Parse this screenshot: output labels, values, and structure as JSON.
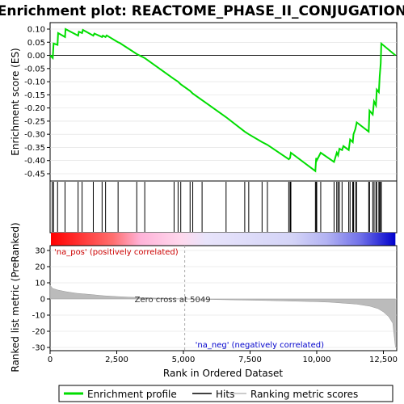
{
  "chart_data": {
    "type": "line",
    "title": "Enrichment plot: REACTOME_PHASE_II_CONJUGATION",
    "xlabel": "Rank in Ordered Dataset",
    "ylabel_top": "Enrichment score (ES)",
    "ylabel_bottom": "Ranked list metric (PreRanked)",
    "xlim": [
      0,
      13000
    ],
    "ylim_top": [
      -0.45,
      0.12
    ],
    "ylim_bottom": [
      -32,
      35
    ],
    "x_ticks": [
      0,
      2500,
      5000,
      7500,
      10000,
      12500
    ],
    "x_tick_labels": [
      "0",
      "2,500",
      "5,000",
      "7,500",
      "10,000",
      "12,500"
    ],
    "y_ticks_top": [
      0.1,
      0.05,
      0.0,
      -0.05,
      -0.1,
      -0.15,
      -0.2,
      -0.25,
      -0.3,
      -0.35,
      -0.4,
      -0.45
    ],
    "y_tick_labels_top": [
      "0.10",
      "0.05",
      "0.00",
      "-0.05",
      "-0.10",
      "-0.15",
      "-0.20",
      "-0.25",
      "-0.30",
      "-0.35",
      "-0.40",
      "-0.45"
    ],
    "y_ticks_bottom": [
      30,
      20,
      10,
      0,
      -10,
      -20,
      -30
    ],
    "y_tick_labels_bottom": [
      "30",
      "20",
      "10",
      "0",
      "-10",
      "-20",
      "-30"
    ],
    "series": [
      {
        "name": "Enrichment profile",
        "color": "#00dd00",
        "points": [
          [
            0,
            0.0
          ],
          [
            100,
            -0.01
          ],
          [
            130,
            0.045
          ],
          [
            280,
            0.04
          ],
          [
            300,
            0.085
          ],
          [
            560,
            0.07
          ],
          [
            580,
            0.1
          ],
          [
            1050,
            0.075
          ],
          [
            1080,
            0.09
          ],
          [
            1200,
            0.085
          ],
          [
            1230,
            0.097
          ],
          [
            1620,
            0.075
          ],
          [
            1660,
            0.083
          ],
          [
            1950,
            0.07
          ],
          [
            1980,
            0.075
          ],
          [
            2080,
            0.07
          ],
          [
            2120,
            0.076
          ],
          [
            2550,
            0.05
          ],
          [
            2600,
            0.048
          ],
          [
            3250,
            0.005
          ],
          [
            3550,
            -0.01
          ],
          [
            4650,
            -0.09
          ],
          [
            4800,
            -0.1
          ],
          [
            4900,
            -0.11
          ],
          [
            5250,
            -0.135
          ],
          [
            5350,
            -0.145
          ],
          [
            5700,
            -0.17
          ],
          [
            6600,
            -0.235
          ],
          [
            7300,
            -0.29
          ],
          [
            7450,
            -0.3
          ],
          [
            7950,
            -0.33
          ],
          [
            8150,
            -0.34
          ],
          [
            8950,
            -0.395
          ],
          [
            9000,
            -0.39
          ],
          [
            9030,
            -0.37
          ],
          [
            9950,
            -0.44
          ],
          [
            9980,
            -0.39
          ],
          [
            10000,
            -0.4
          ],
          [
            10150,
            -0.37
          ],
          [
            10650,
            -0.405
          ],
          [
            10750,
            -0.37
          ],
          [
            10800,
            -0.38
          ],
          [
            10850,
            -0.355
          ],
          [
            10950,
            -0.36
          ],
          [
            11000,
            -0.345
          ],
          [
            11200,
            -0.36
          ],
          [
            11250,
            -0.32
          ],
          [
            11350,
            -0.33
          ],
          [
            11380,
            -0.3
          ],
          [
            11450,
            -0.28
          ],
          [
            11500,
            -0.255
          ],
          [
            11950,
            -0.29
          ],
          [
            11980,
            -0.21
          ],
          [
            12100,
            -0.225
          ],
          [
            12150,
            -0.175
          ],
          [
            12220,
            -0.19
          ],
          [
            12250,
            -0.13
          ],
          [
            12330,
            -0.14
          ],
          [
            12360,
            -0.08
          ],
          [
            12400,
            -0.03
          ],
          [
            12420,
            0.045
          ],
          [
            12950,
            0.0
          ]
        ]
      }
    ],
    "hits": [
      80,
      130,
      280,
      560,
      1050,
      1200,
      1620,
      1950,
      2080,
      2550,
      3250,
      3550,
      4650,
      4800,
      4900,
      5250,
      5350,
      5700,
      6600,
      7300,
      7450,
      7950,
      8150,
      8950,
      9000,
      9030,
      9950,
      9980,
      10000,
      10150,
      10650,
      10750,
      10800,
      10850,
      10950,
      11200,
      11250,
      11350,
      11380,
      11450,
      11500,
      11950,
      11980,
      12100,
      12150,
      12220,
      12250,
      12330,
      12360,
      12400,
      12420
    ],
    "ranked_metric": [
      [
        0,
        8.5
      ],
      [
        100,
        6.5
      ],
      [
        300,
        5.5
      ],
      [
        600,
        4.5
      ],
      [
        1000,
        3.5
      ],
      [
        1500,
        2.8
      ],
      [
        2000,
        2.0
      ],
      [
        2500,
        1.5
      ],
      [
        3000,
        1.1
      ],
      [
        3500,
        0.8
      ],
      [
        4000,
        0.5
      ],
      [
        4500,
        0.3
      ],
      [
        5049,
        0.0
      ],
      [
        6000,
        -0.3
      ],
      [
        7000,
        -0.6
      ],
      [
        8000,
        -0.9
      ],
      [
        9000,
        -1.3
      ],
      [
        10000,
        -1.7
      ],
      [
        10500,
        -2.0
      ],
      [
        11000,
        -2.6
      ],
      [
        11500,
        -3.2
      ],
      [
        12000,
        -4.5
      ],
      [
        12300,
        -6.0
      ],
      [
        12500,
        -8.0
      ],
      [
        12700,
        -11.0
      ],
      [
        12850,
        -15.0
      ],
      [
        12950,
        -30.0
      ]
    ],
    "annotations": {
      "pos": "'na_pos' (positively correlated)",
      "neg": "'na_neg' (negatively correlated)",
      "zero_cross": "Zero cross at 5049",
      "zero_cross_x": 5049
    },
    "legend": [
      {
        "label": "Enrichment profile",
        "color": "#00dd00",
        "kind": "thick-line"
      },
      {
        "label": "Hits",
        "color": "#000000",
        "kind": "line"
      },
      {
        "label": "Ranking metric scores",
        "color": "#bbbbbb",
        "kind": "line"
      }
    ],
    "colors": {
      "pos_text": "#cc0000",
      "neg_text": "#0000cc",
      "metric_fill": "#bbbbbb",
      "grid": "#dddddd"
    }
  }
}
